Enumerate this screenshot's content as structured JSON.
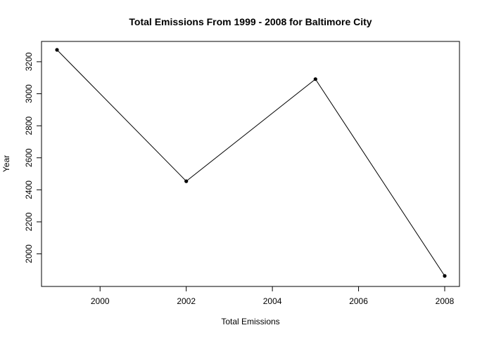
{
  "chart_data": {
    "type": "line",
    "title": "Total Emissions From 1999 - 2008 for Baltimore City",
    "xlabel": "Total Emissions",
    "ylabel": "Year",
    "x": [
      1999,
      2002,
      2005,
      2008
    ],
    "series": [
      {
        "values": [
          3274.18,
          2453.92,
          3091.35,
          1862.28
        ]
      }
    ],
    "xlim": [
      1999,
      2008
    ],
    "ylim": [
      1862.28,
      3274.18
    ],
    "x_ticks": [
      "2000",
      "2002",
      "2004",
      "2006",
      "2008"
    ],
    "y_ticks": [
      "2000",
      "2200",
      "2400",
      "2600",
      "2800",
      "3000",
      "3200"
    ],
    "grid": false,
    "legend": "none",
    "line_color": "#000000",
    "marker_color": "#000000"
  }
}
